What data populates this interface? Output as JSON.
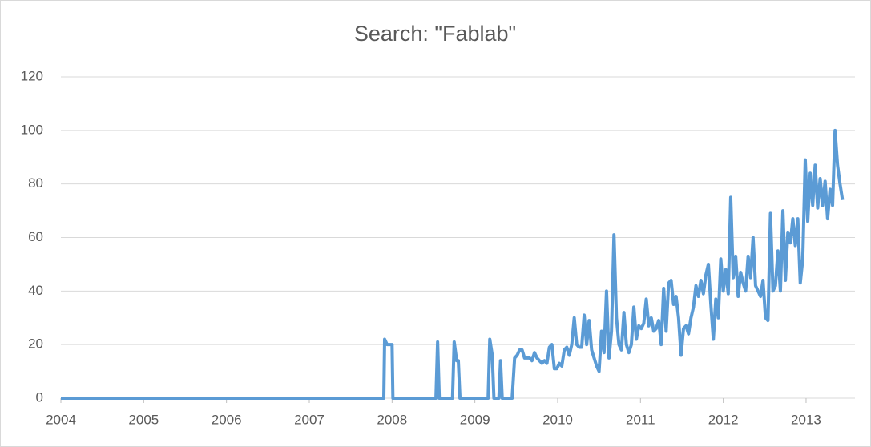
{
  "chart_data": {
    "type": "line",
    "title": "Search: \"Fablab\"",
    "x": [
      2004,
      2007.9,
      2007.91,
      2007.94,
      2008.0,
      2008.01,
      2008.53,
      2008.55,
      2008.57,
      2008.73,
      2008.75,
      2008.78,
      2008.8,
      2008.82,
      2009.16,
      2009.18,
      2009.21,
      2009.23,
      2009.29,
      2009.31,
      2009.33,
      2009.45,
      2009.48,
      2009.51,
      2009.54,
      2009.57,
      2009.6,
      2009.63,
      2009.66,
      2009.69,
      2009.72,
      2009.75,
      2009.78,
      2009.81,
      2009.84,
      2009.87,
      2009.9,
      2009.93,
      2009.96,
      2009.99,
      2010.02,
      2010.05,
      2010.08,
      2010.11,
      2010.14,
      2010.17,
      2010.2,
      2010.23,
      2010.26,
      2010.29,
      2010.32,
      2010.35,
      2010.38,
      2010.41,
      2010.44,
      2010.47,
      2010.5,
      2010.53,
      2010.56,
      2010.59,
      2010.62,
      2010.65,
      2010.68,
      2010.71,
      2010.74,
      2010.77,
      2010.8,
      2010.83,
      2010.86,
      2010.89,
      2010.92,
      2010.95,
      2010.98,
      2011.01,
      2011.04,
      2011.07,
      2011.1,
      2011.13,
      2011.16,
      2011.19,
      2011.22,
      2011.25,
      2011.28,
      2011.31,
      2011.34,
      2011.37,
      2011.4,
      2011.43,
      2011.46,
      2011.49,
      2011.52,
      2011.55,
      2011.58,
      2011.61,
      2011.64,
      2011.67,
      2011.7,
      2011.73,
      2011.76,
      2011.79,
      2011.82,
      2011.85,
      2011.88,
      2011.91,
      2011.94,
      2011.97,
      2012.0,
      2012.03,
      2012.06,
      2012.09,
      2012.12,
      2012.15,
      2012.18,
      2012.21,
      2012.24,
      2012.27,
      2012.3,
      2012.33,
      2012.36,
      2012.39,
      2012.42,
      2012.45,
      2012.48,
      2012.51,
      2012.54,
      2012.57,
      2012.6,
      2012.63,
      2012.66,
      2012.69,
      2012.72,
      2012.75,
      2012.78,
      2012.81,
      2012.84,
      2012.87,
      2012.9,
      2012.93,
      2012.96,
      2012.99,
      2013.02,
      2013.05,
      2013.08,
      2013.11,
      2013.14,
      2013.17,
      2013.2,
      2013.23,
      2013.26,
      2013.29,
      2013.32,
      2013.35,
      2013.38,
      2013.41,
      2013.44
    ],
    "series": [
      {
        "color": "#5b9bd5",
        "values": [
          0,
          0,
          22,
          20,
          20,
          0,
          0,
          21,
          0,
          0,
          21,
          14,
          14,
          0,
          0,
          22,
          16,
          0,
          0,
          14,
          0,
          0,
          15,
          16,
          18,
          18,
          15,
          15,
          15,
          14,
          17,
          15,
          14,
          13,
          14,
          13,
          19,
          20,
          11,
          11,
          13,
          12,
          18,
          19,
          16,
          20,
          30,
          20,
          19,
          19,
          31,
          20,
          29,
          18,
          15,
          12,
          10,
          25,
          17,
          40,
          15,
          25,
          61,
          30,
          20,
          18,
          32,
          20,
          17,
          20,
          34,
          22,
          27,
          26,
          28,
          37,
          27,
          30,
          25,
          26,
          29,
          20,
          41,
          25,
          43,
          44,
          35,
          38,
          30,
          16,
          26,
          27,
          24,
          30,
          34,
          42,
          38,
          44,
          39,
          46,
          50,
          35,
          22,
          37,
          30,
          52,
          40,
          48,
          39,
          75,
          45,
          53,
          38,
          47,
          43,
          40,
          53,
          45,
          60,
          42,
          40,
          38,
          44,
          30,
          29,
          69,
          40,
          42,
          55,
          40,
          70,
          44,
          62,
          58,
          67,
          57,
          67,
          43,
          52,
          89,
          66,
          84,
          72,
          87,
          71,
          82,
          72,
          81,
          67,
          78,
          72,
          100,
          87,
          80,
          74
        ]
      }
    ],
    "xlim": [
      2004,
      2014
    ],
    "xticks": [
      2004,
      2005,
      2006,
      2007,
      2008,
      2009,
      2010,
      2011,
      2012,
      2013
    ],
    "ylim": [
      0,
      120
    ],
    "yticks": [
      0,
      20,
      40,
      60,
      80,
      100,
      120
    ],
    "grid": true
  }
}
